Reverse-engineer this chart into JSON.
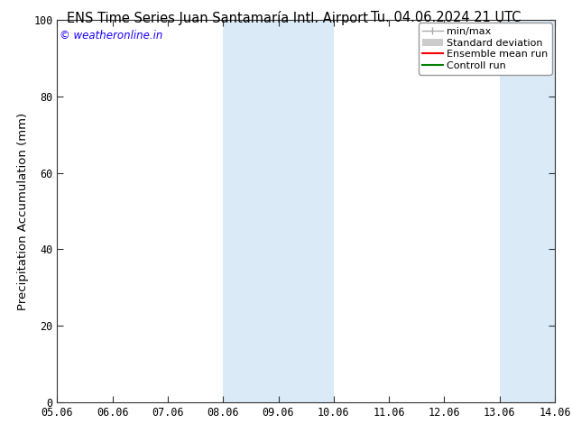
{
  "title_left": "ENS Time Series Juan Santamaría Intl. Airport",
  "title_right": "Tu. 04.06.2024 21 UTC",
  "ylabel": "Precipitation Accumulation (mm)",
  "xtick_labels": [
    "05.06",
    "06.06",
    "07.06",
    "08.06",
    "09.06",
    "10.06",
    "11.06",
    "12.06",
    "13.06",
    "14.06"
  ],
  "xtick_positions": [
    0,
    1,
    2,
    3,
    4,
    5,
    6,
    7,
    8,
    9
  ],
  "ylim": [
    0,
    100
  ],
  "ytick_labels": [
    "0",
    "20",
    "40",
    "60",
    "80",
    "100"
  ],
  "ytick_positions": [
    0,
    20,
    40,
    60,
    80,
    100
  ],
  "shaded_regions": [
    {
      "x_start": 3,
      "x_end": 5,
      "color": "#daeaf7"
    },
    {
      "x_start": 8,
      "x_end": 9,
      "color": "#daeaf7"
    }
  ],
  "watermark_text": "© weatheronline.in",
  "watermark_color": "#1a00ff",
  "background_color": "#ffffff",
  "plot_bg_color": "#ffffff",
  "title_fontsize": 10.5,
  "tick_fontsize": 8.5,
  "ylabel_fontsize": 9.5,
  "legend_fontsize": 8
}
